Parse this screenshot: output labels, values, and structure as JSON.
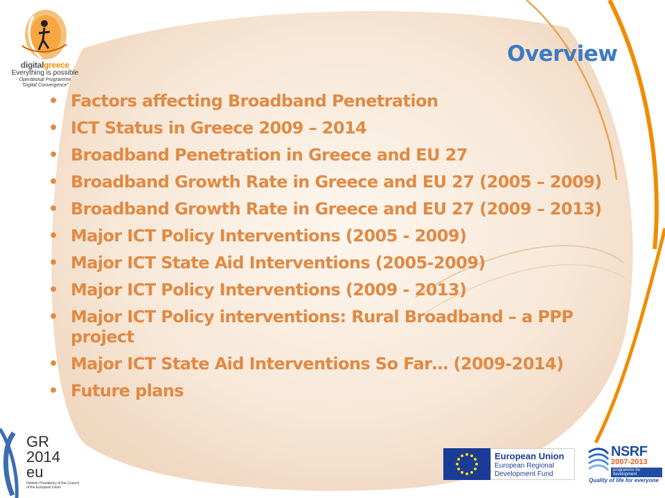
{
  "logo": {
    "icon": "digitalgreece-logo-icon",
    "brand_prefix": "digital",
    "brand_suffix": "greece",
    "tagline": "Everything is possible",
    "subtitle_line1": "Operational Programme",
    "subtitle_line2": "\"Digital Convergence\""
  },
  "slide": {
    "title": "Overview",
    "bullets": [
      "Factors affecting Broadband Penetration",
      "ICT Status in Greece 2009 – 2014",
      "Broadband Penetration in Greece and EU 27",
      "Broadband Growth Rate in Greece and EU 27 (2005 – 2009)",
      "Broadband Growth Rate in Greece and EU 27 (2009 – 2013)",
      "Major ICT Policy Interventions (2005 - 2009)",
      "Major ICT State Aid Interventions (2005-2009)",
      "Major ICT Policy Interventions (2009 - 2013)",
      "Major ICT Policy interventions: Rural Broadband – a PPP project",
      "Major ICT State Aid Interventions So Far… (2009-2014)",
      "Future plans"
    ]
  },
  "footer": {
    "presidency": {
      "line1": "GR",
      "line2": "2014",
      "line3": "eu",
      "caption": "Hellenic Presidency of the Council of the European Union"
    },
    "eu": {
      "name": "European Union",
      "fund_line1": "European Regional",
      "fund_line2": "Development Fund"
    },
    "nsrf": {
      "title": "NSRF",
      "years": "2007-2013",
      "programme": "programme for development",
      "tagline": "Quality of life for everyone"
    }
  },
  "colors": {
    "title": "#3b7bc4",
    "bullet_text": "#e08a44",
    "swoosh": "#f08c00",
    "blob": "#f4e1cf"
  }
}
